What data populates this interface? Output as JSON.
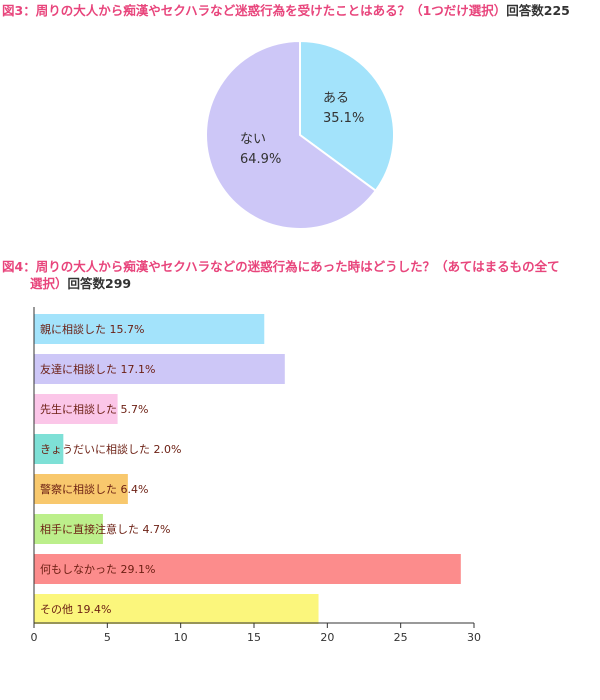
{
  "fig3": {
    "fig_label": "図3：",
    "question": "周りの大人から痴漢やセクハラなど迷惑行為を受けたことはある？（1つだけ選択）",
    "count_label": "回答数225"
  },
  "fig4": {
    "fig_label": "図4：",
    "question_line1": "周りの大人から痴漢やセクハラなどの迷惑行為にあった時はどうした？（あてはまるもの全て",
    "question_line2": "選択）",
    "count_label": "回答数299"
  },
  "chart_data": [
    {
      "type": "pie",
      "slices": [
        {
          "label": "ある",
          "value": 35.1,
          "value_label": "35.1%",
          "color": "#a3e3fb"
        },
        {
          "label": "ない",
          "value": 64.9,
          "value_label": "64.9%",
          "color": "#cdc7f7"
        }
      ],
      "start": "12 o'clock",
      "direction": "clockwise"
    },
    {
      "type": "bar",
      "orientation": "horizontal",
      "categories": [
        "親に相談した",
        "友達に相談した",
        "先生に相談した",
        "きょうだいに相談した",
        "警察に相談した",
        "相手に直接注意した",
        "何もしなかった",
        "その他"
      ],
      "values": [
        15.7,
        17.1,
        5.7,
        2.0,
        6.4,
        4.7,
        29.1,
        19.4
      ],
      "value_labels": [
        "15.7%",
        "17.1%",
        "5.7%",
        "2.0%",
        "6.4%",
        "4.7%",
        "29.1%",
        "19.4%"
      ],
      "colors": [
        "#a3e3fb",
        "#cdc7f7",
        "#fbc6e8",
        "#7ee0d6",
        "#f8c86d",
        "#bcef8b",
        "#fc8c8c",
        "#fbf67c"
      ],
      "xlim": [
        0,
        30
      ],
      "xticks": [
        "0",
        "5",
        "10",
        "15",
        "20",
        "25",
        "30"
      ],
      "grid": false
    }
  ]
}
